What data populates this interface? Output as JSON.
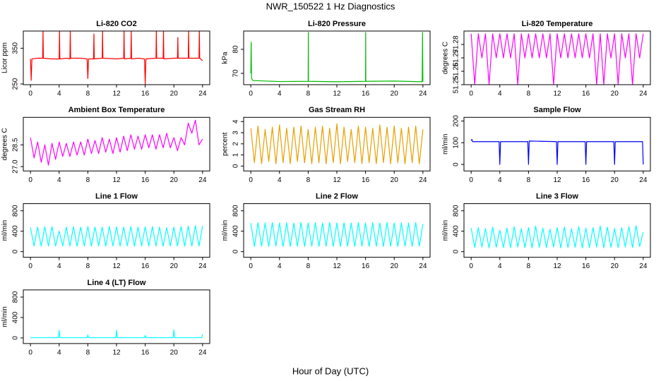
{
  "title": "NWR_150522  1 Hz Diagnostics",
  "xlabel": "Hour of Day (UTC)",
  "chart_data": [
    {
      "type": "line",
      "title": "Li-820 CO2",
      "ylabel": "Licor ppm",
      "xlim": [
        -1,
        25
      ],
      "xticks": [
        0,
        4,
        8,
        12,
        16,
        20,
        24
      ],
      "ylim": [
        248,
        398
      ],
      "yticks": [
        250,
        350
      ],
      "x": [
        0,
        0.1,
        0.2,
        1,
        1.7,
        1.75,
        1.8,
        3,
        4,
        4.05,
        4.1,
        5,
        5.5,
        5.55,
        5.6,
        7,
        7.9,
        8,
        8.1,
        8.8,
        8.85,
        8.9,
        10,
        10.05,
        10.1,
        12,
        13,
        13.05,
        13.1,
        14,
        14.05,
        14.1,
        15,
        15.9,
        16,
        16.1,
        17.5,
        17.55,
        17.6,
        18.5,
        18.55,
        18.6,
        20,
        20.5,
        20.55,
        20.6,
        22,
        22.05,
        22.1,
        23.5,
        23.55,
        23.6,
        24
      ],
      "series": [
        {
          "color": "#ff0000",
          "values": [
            320,
            260,
            320,
            322,
            322,
            398,
            322,
            320,
            320,
            398,
            320,
            322,
            320,
            398,
            322,
            322,
            320,
            265,
            320,
            320,
            390,
            320,
            322,
            398,
            322,
            320,
            322,
            398,
            320,
            322,
            398,
            320,
            322,
            320,
            250,
            320,
            322,
            398,
            322,
            322,
            398,
            320,
            322,
            322,
            380,
            322,
            322,
            398,
            322,
            322,
            398,
            322,
            315
          ]
        }
      ]
    },
    {
      "type": "line",
      "title": "Li-820 Pressure",
      "ylabel": "kPa",
      "xlim": [
        -1,
        25
      ],
      "xticks": [
        0,
        4,
        8,
        12,
        16,
        20,
        24
      ],
      "ylim": [
        65.3,
        87.6
      ],
      "yticks": [
        70,
        80
      ],
      "x": [
        0,
        0.05,
        0.1,
        0.3,
        4,
        8,
        8.02,
        8.04,
        12,
        16,
        16.02,
        16.04,
        20,
        23.9,
        23.95,
        24
      ],
      "series": [
        {
          "color": "#00bb00",
          "values": [
            70,
            83,
            68,
            67,
            66.6,
            66.7,
            87,
            66.7,
            66.5,
            66.7,
            87,
            66.7,
            66.8,
            66.5,
            87,
            66.5
          ]
        }
      ]
    },
    {
      "type": "line",
      "title": "Li-820 Temperature",
      "ylabel": "degrees C",
      "xlim": [
        -1,
        25
      ],
      "xticks": [
        0,
        4,
        8,
        12,
        16,
        20,
        24
      ],
      "ylim": [
        51.25,
        51.29
      ],
      "yticks": [
        51.25,
        51.26,
        51.27,
        51.28
      ],
      "x": [
        0,
        0.5,
        1,
        1.5,
        2,
        2.5,
        3,
        3.5,
        4,
        4.5,
        5,
        5.5,
        6,
        6.5,
        7,
        7.5,
        8,
        8.5,
        9,
        9.5,
        10,
        10.5,
        11,
        11.5,
        12,
        12.5,
        13,
        13.5,
        14,
        14.5,
        15,
        15.5,
        16,
        16.5,
        17,
        17.5,
        18,
        18.5,
        19,
        19.5,
        20,
        20.5,
        21,
        21.5,
        22,
        22.5,
        23,
        23.5,
        24
      ],
      "series": [
        {
          "color": "#ff00ff",
          "values": [
            51.288,
            51.25,
            51.288,
            51.27,
            51.288,
            51.25,
            51.288,
            51.27,
            51.288,
            51.27,
            51.288,
            51.27,
            51.288,
            51.25,
            51.288,
            51.27,
            51.288,
            51.27,
            51.288,
            51.27,
            51.288,
            51.27,
            51.288,
            51.25,
            51.288,
            51.27,
            51.288,
            51.27,
            51.288,
            51.27,
            51.288,
            51.27,
            51.288,
            51.27,
            51.288,
            51.25,
            51.288,
            51.25,
            51.288,
            51.27,
            51.288,
            51.25,
            51.288,
            51.27,
            51.288,
            51.25,
            51.288,
            51.27,
            51.288
          ]
        }
      ]
    },
    {
      "type": "line",
      "title": "Ambient Box Temperature",
      "ylabel": "degrees C",
      "xlim": [
        -1,
        25
      ],
      "xticks": [
        0,
        4,
        8,
        12,
        16,
        20,
        24
      ],
      "ylim": [
        26.7,
        30.4
      ],
      "yticks": [
        {
          "value": 27,
          "label": "27.0"
        },
        28.5
      ],
      "x": [
        0,
        0.5,
        1,
        1.5,
        2,
        2.5,
        3,
        3.5,
        4,
        4.5,
        5,
        5.5,
        6,
        6.5,
        7,
        7.5,
        8,
        8.5,
        9,
        9.5,
        10,
        10.5,
        11,
        11.5,
        12,
        12.5,
        13,
        13.5,
        14,
        14.5,
        15,
        15.5,
        16,
        16.5,
        17,
        17.5,
        18,
        18.5,
        19,
        19.5,
        20,
        20.5,
        21,
        21.5,
        22,
        22.5,
        23,
        23.5,
        24
      ],
      "series": [
        {
          "color": "#ff00ff",
          "values": [
            29.0,
            27.6,
            28.7,
            27.3,
            28.5,
            27.1,
            28.6,
            27.5,
            28.7,
            27.7,
            28.6,
            27.7,
            28.7,
            27.8,
            28.7,
            27.8,
            28.9,
            27.9,
            28.8,
            27.9,
            29.0,
            28.0,
            28.9,
            27.9,
            29.0,
            28.0,
            29.1,
            28.1,
            29.2,
            28.2,
            29.1,
            28.2,
            29.2,
            28.3,
            29.2,
            28.2,
            29.2,
            28.3,
            29.3,
            28.3,
            29.0,
            28.1,
            29.0,
            28.5,
            30.0,
            29.3,
            30.2,
            28.5,
            28.9
          ]
        }
      ]
    },
    {
      "type": "line",
      "title": "Gas Stream RH",
      "ylabel": "percent",
      "xlim": [
        -1,
        25
      ],
      "xticks": [
        0,
        4,
        8,
        12,
        16,
        20,
        24
      ],
      "ylim": [
        -0.44,
        4.38
      ],
      "yticks": [
        0,
        1,
        2,
        3,
        4
      ],
      "x": [
        0,
        0.5,
        1,
        1.5,
        2,
        2.5,
        3,
        3.5,
        4,
        4.5,
        5,
        5.5,
        6,
        6.5,
        7,
        7.5,
        8,
        8.5,
        9,
        9.5,
        10,
        10.5,
        11,
        11.5,
        12,
        12.5,
        13,
        13.5,
        14,
        14.5,
        15,
        15.5,
        16,
        16.5,
        17,
        17.5,
        18,
        18.5,
        19,
        19.5,
        20,
        20.5,
        21,
        21.5,
        22,
        22.5,
        23,
        23.5,
        24
      ],
      "series": [
        {
          "color": "#e8a000",
          "values": [
            3.4,
            0.3,
            3.6,
            0.2,
            3.3,
            0.4,
            3.5,
            0.2,
            3.7,
            0.3,
            3.4,
            0.2,
            3.5,
            0.4,
            3.6,
            0.3,
            3.3,
            0.2,
            3.5,
            0.3,
            3.6,
            0.2,
            3.4,
            0.3,
            3.8,
            0.2,
            3.5,
            0.4,
            3.3,
            0.3,
            3.6,
            0.2,
            3.5,
            0.3,
            3.4,
            0.2,
            3.7,
            0.3,
            3.5,
            0.2,
            3.6,
            0.3,
            3.4,
            0.2,
            3.5,
            0.3,
            3.6,
            0.2,
            3.3
          ]
        }
      ]
    },
    {
      "type": "line",
      "title": "Sample Flow",
      "ylabel": "ml/min",
      "xlim": [
        -1,
        25
      ],
      "xticks": [
        0,
        4,
        8,
        12,
        16,
        20,
        24
      ],
      "ylim": [
        -30,
        217
      ],
      "yticks": [
        0,
        100,
        200
      ],
      "x": [
        0,
        0.1,
        0.2,
        3.9,
        4,
        4.1,
        7.9,
        8,
        8.1,
        11.9,
        12,
        12.1,
        15.9,
        16,
        16.1,
        19.9,
        20,
        20.1,
        23.9,
        24
      ],
      "series": [
        {
          "color": "#0000ff",
          "values": [
            110,
            115,
            105,
            105,
            0,
            105,
            105,
            0,
            108,
            105,
            0,
            105,
            105,
            0,
            105,
            105,
            0,
            105,
            105,
            0
          ]
        }
      ]
    },
    {
      "type": "line",
      "title": "Line 1 Flow",
      "ylabel": "ml/min",
      "xlim": [
        -1,
        25
      ],
      "xticks": [
        0,
        4,
        8,
        12,
        16,
        20,
        24
      ],
      "ylim": [
        -110,
        940
      ],
      "yticks": [
        0,
        400,
        800
      ],
      "x": [
        0,
        0.5,
        1,
        1.5,
        2,
        2.5,
        3,
        3.5,
        4,
        4.5,
        5,
        5.5,
        6,
        6.5,
        7,
        7.5,
        8,
        8.5,
        9,
        9.5,
        10,
        10.5,
        11,
        11.5,
        12,
        12.5,
        13,
        13.5,
        14,
        14.5,
        15,
        15.5,
        16,
        16.5,
        17,
        17.5,
        18,
        18.5,
        19,
        19.5,
        20,
        20.5,
        21,
        21.5,
        22,
        22.5,
        23,
        23.5,
        24
      ],
      "series": [
        {
          "color": "#00ffff",
          "values": [
            470,
            110,
            480,
            105,
            485,
            110,
            490,
            108,
            400,
            110,
            480,
            110,
            485,
            105,
            480,
            110,
            490,
            108,
            485,
            110,
            480,
            105,
            490,
            110,
            485,
            108,
            480,
            110,
            490,
            105,
            480,
            110,
            485,
            108,
            490,
            110,
            480,
            105,
            470,
            110,
            480,
            110,
            490,
            105,
            500,
            110,
            510,
            110,
            500
          ]
        }
      ]
    },
    {
      "type": "line",
      "title": "Line 2 Flow",
      "ylabel": "ml/min",
      "xlim": [
        -1,
        25
      ],
      "xticks": [
        0,
        4,
        8,
        12,
        16,
        20,
        24
      ],
      "ylim": [
        -110,
        940
      ],
      "yticks": [
        0,
        400,
        800
      ],
      "x": [
        0,
        0.5,
        1,
        1.5,
        2,
        2.5,
        3,
        3.5,
        4,
        4.5,
        5,
        5.5,
        6,
        6.5,
        7,
        7.5,
        8,
        8.5,
        9,
        9.5,
        10,
        10.5,
        11,
        11.5,
        12,
        12.5,
        13,
        13.5,
        14,
        14.5,
        15,
        15.5,
        16,
        16.5,
        17,
        17.5,
        18,
        18.5,
        19,
        19.5,
        20,
        20.5,
        21,
        21.5,
        22,
        22.5,
        23,
        23.5,
        24
      ],
      "series": [
        {
          "color": "#00ffff",
          "values": [
            560,
            100,
            565,
            105,
            560,
            100,
            570,
            105,
            560,
            100,
            565,
            100,
            560,
            105,
            570,
            100,
            560,
            105,
            565,
            100,
            560,
            105,
            570,
            100,
            560,
            100,
            565,
            105,
            560,
            100,
            570,
            105,
            560,
            100,
            565,
            105,
            560,
            100,
            570,
            105,
            560,
            100,
            565,
            105,
            560,
            100,
            570,
            105,
            540
          ]
        }
      ]
    },
    {
      "type": "line",
      "title": "Line 3 Flow",
      "ylabel": "ml/min",
      "xlim": [
        -1,
        25
      ],
      "xticks": [
        0,
        4,
        8,
        12,
        16,
        20,
        24
      ],
      "ylim": [
        -110,
        940
      ],
      "yticks": [
        0,
        400,
        800
      ],
      "x": [
        0,
        0.5,
        1,
        1.5,
        2,
        2.5,
        3,
        3.5,
        4,
        4.5,
        5,
        5.5,
        6,
        6.5,
        7,
        7.5,
        8,
        8.5,
        9,
        9.5,
        10,
        10.5,
        11,
        11.5,
        12,
        12.5,
        13,
        13.5,
        14,
        14.5,
        15,
        15.5,
        16,
        16.5,
        17,
        17.5,
        18,
        18.5,
        19,
        19.5,
        20,
        20.5,
        21,
        21.5,
        22,
        22.5,
        23,
        23.5,
        24
      ],
      "series": [
        {
          "color": "#00ffff",
          "values": [
            460,
            80,
            470,
            90,
            450,
            70,
            480,
            85,
            420,
            80,
            460,
            75,
            490,
            90,
            450,
            80,
            470,
            70,
            500,
            85,
            460,
            80,
            440,
            90,
            470,
            75,
            480,
            80,
            450,
            85,
            490,
            70,
            460,
            80,
            470,
            90,
            500,
            75,
            480,
            85,
            450,
            80,
            470,
            90,
            490,
            80,
            510,
            100,
            380
          ]
        }
      ]
    },
    {
      "type": "line",
      "title": "Line 4 (LT) Flow",
      "ylabel": "ml/min",
      "xlim": [
        -1,
        25
      ],
      "xticks": [
        0,
        4,
        8,
        12,
        16,
        20,
        24
      ],
      "ylim": [
        -110,
        940
      ],
      "yticks": [
        0,
        400,
        800
      ],
      "x": [
        0,
        3.9,
        4,
        4.1,
        7.9,
        8,
        8.1,
        11.9,
        12,
        12.1,
        15.9,
        16,
        16.1,
        19.9,
        20,
        20.1,
        23.9,
        24
      ],
      "series": [
        {
          "color": "#00ffff",
          "values": [
            5,
            5,
            150,
            5,
            5,
            60,
            5,
            5,
            150,
            5,
            5,
            50,
            5,
            5,
            160,
            5,
            5,
            70
          ]
        }
      ]
    }
  ]
}
